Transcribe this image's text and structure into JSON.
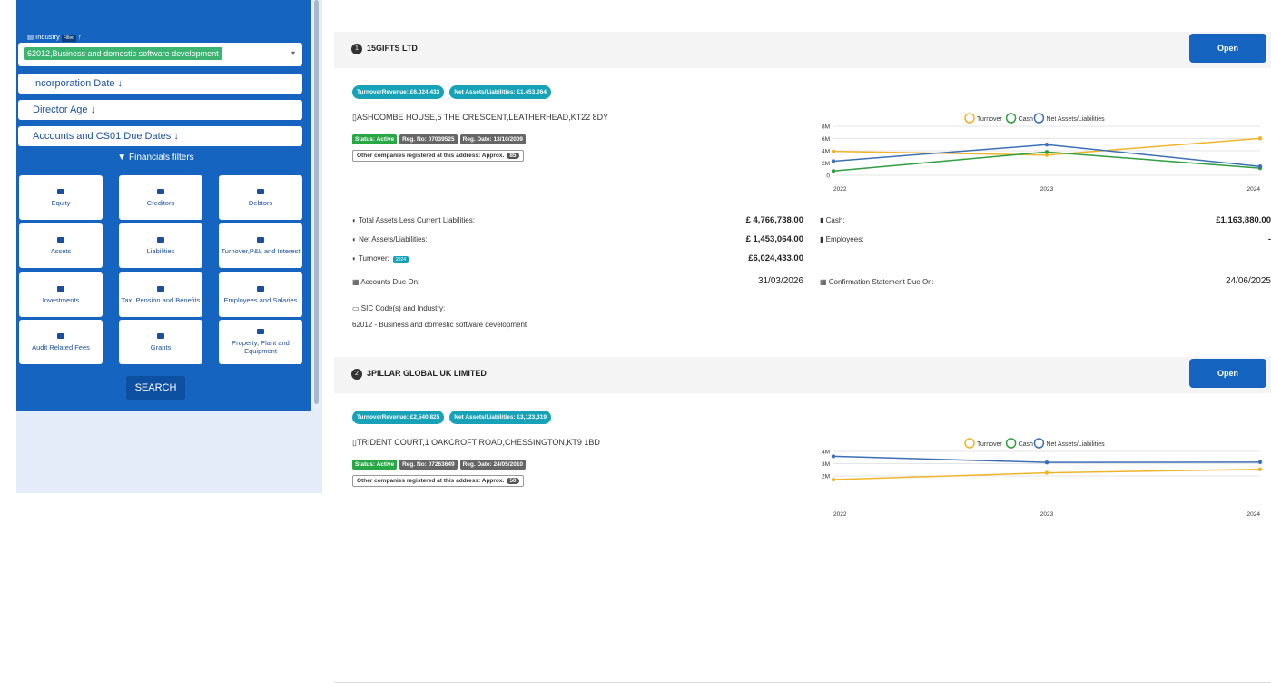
{
  "sidebar": {
    "industry_label": "Industry",
    "industry_badge": "Filled",
    "industry_value": "62012,Business and domestic software development",
    "filters": [
      "Incorporation Date",
      "Director Age",
      "Accounts and CS01 Due Dates"
    ],
    "financials_label": "Financials filters",
    "tiles": [
      "Equity",
      "Creditors",
      "Debtors",
      "Assets",
      "Liabilities",
      "Turnover,P&L and Interest",
      "Investments",
      "Tax, Pension and Benefits",
      "Employees and Salaries",
      "Audit Related Fees",
      "Grants",
      "Property, Plant and Equipment"
    ],
    "search": "SEARCH"
  },
  "companies": [
    {
      "number": "1",
      "name": "15GIFTS LTD",
      "open": "Open",
      "badges": [
        "TurnoverRevenue: £6,024,433",
        "Net Assets/Liabilities: £1,453,064"
      ],
      "address": "ASHCOMBE HOUSE,5 THE CRESCENT,LEATHERHEAD,KT22 8DY",
      "tags": [
        "Status: Active",
        "Reg. No: 07039525",
        "Reg. Date: 13/10/2009"
      ],
      "other": "Other companies registered at this address: Approx.",
      "other_count": "85",
      "chart_data": {
        "type": "line",
        "categories": [
          "2022",
          "2023",
          "2024"
        ],
        "ylim": [
          0,
          8000000
        ],
        "yticks": [
          {
            "value": 0,
            "label": "0"
          },
          {
            "value": 2000000,
            "label": "2M"
          },
          {
            "value": 4000000,
            "label": "4M"
          },
          {
            "value": 6000000,
            "label": "6M"
          },
          {
            "value": 8000000,
            "label": "8M"
          }
        ],
        "grid": true,
        "series": [
          {
            "name": "Turnover",
            "color": "#f0b429",
            "values": [
              3900000,
              3300000,
              6024433
            ]
          },
          {
            "name": "Cash",
            "color": "#2e9e3e",
            "values": [
              700000,
              3800000,
              1163880
            ]
          },
          {
            "name": "Net Assets/Liabilities",
            "color": "#3b6fb6",
            "values": [
              2300000,
              5000000,
              1453064
            ]
          }
        ]
      },
      "financials": {
        "left": [
          {
            "label": "Total Assets Less Current Liabilities:",
            "value": "£ 4,766,738.00"
          },
          {
            "label": "Net Assets/Liabilities:",
            "value": "£ 1,453,064.00"
          },
          {
            "label": "Turnover:",
            "badge": "2024",
            "value": "£6,024,433.00"
          }
        ],
        "right": [
          {
            "label": "Cash:",
            "value": "£1,163,880.00"
          },
          {
            "label": "Employees:",
            "value": "-"
          }
        ]
      },
      "dates": [
        {
          "label": "Accounts Due On:",
          "value": "31/03/2026"
        },
        {
          "label": "Confirmation Statement Due On:",
          "value": "24/06/2025"
        }
      ],
      "sic_label": "SIC Code(s) and Industry:",
      "sic": "62012 - Business and domestic software development"
    },
    {
      "number": "2",
      "name": "3PILLAR GLOBAL UK LIMITED",
      "open": "Open",
      "badges": [
        "TurnoverRevenue: £2,540,825",
        "Net Assets/Liabilities: £3,123,319"
      ],
      "address": "TRIDENT COURT,1 OAKCROFT ROAD,CHESSINGTON,KT9 1BD",
      "tags": [
        "Status: Active",
        "Reg. No: 07263649",
        "Reg. Date: 24/05/2010"
      ],
      "other": "Other companies registered at this address: Approx.",
      "other_count": "50",
      "chart_data": {
        "type": "line",
        "categories": [
          "2022",
          "2023",
          "2024"
        ],
        "ylim": [
          0,
          4000000
        ],
        "yticks": [
          {
            "value": 2000000,
            "label": "2M"
          },
          {
            "value": 3000000,
            "label": "3M"
          },
          {
            "value": 4000000,
            "label": "4M"
          }
        ],
        "grid": true,
        "series": [
          {
            "name": "Turnover",
            "color": "#f0b429",
            "values": [
              1700000,
              2250000,
              2540825
            ]
          },
          {
            "name": "Cash",
            "color": "#2e9e3e",
            "values": [
              null,
              null,
              null
            ]
          },
          {
            "name": "Net Assets/Liabilities",
            "color": "#3b6fb6",
            "values": [
              3600000,
              3100000,
              3123319
            ]
          }
        ]
      }
    }
  ]
}
